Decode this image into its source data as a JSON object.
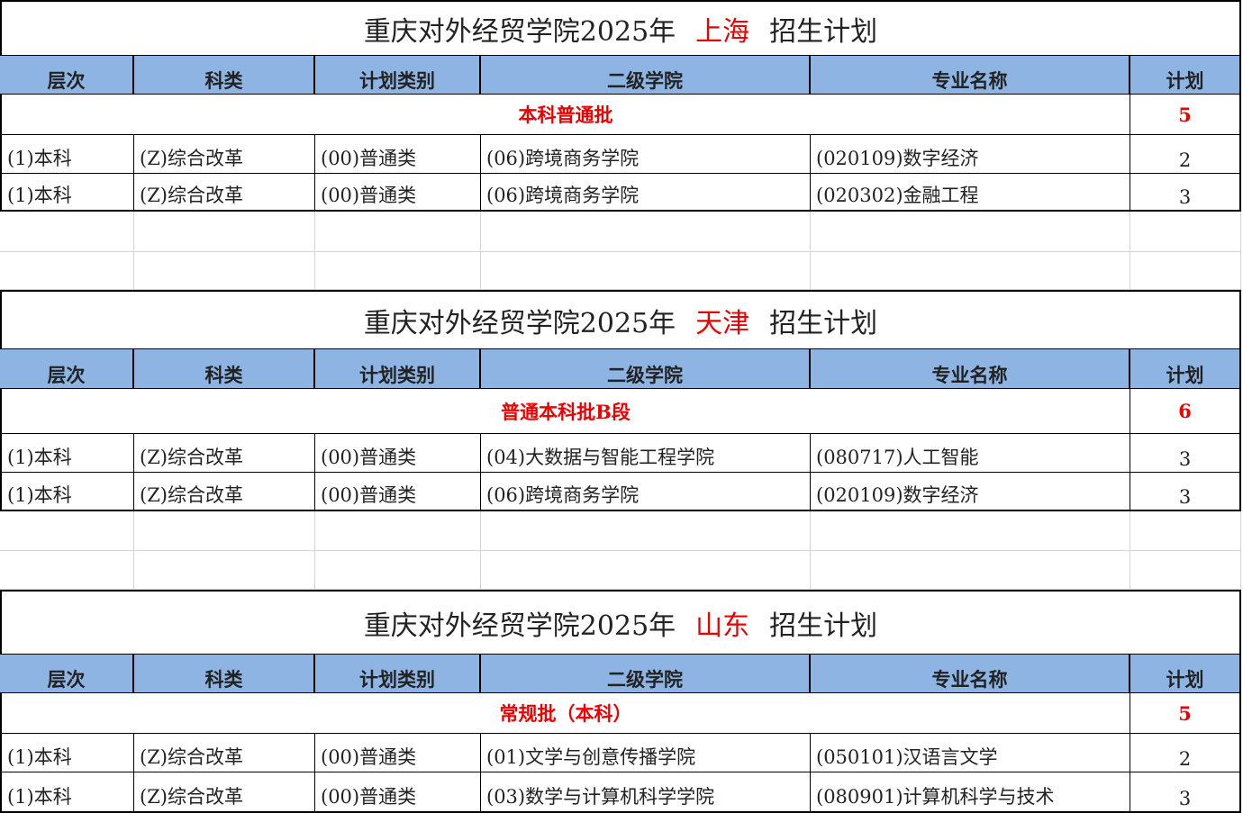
{
  "headers": [
    "层次",
    "科类",
    "计划类别",
    "二级学院",
    "专业名称",
    "计划"
  ],
  "sections": [
    {
      "title": {
        "prefix": "重庆对外经贸学院2025年",
        "region": "上海",
        "suffix": "招生计划"
      },
      "batch": {
        "name": "本科普通批",
        "total": 5
      },
      "rows": [
        [
          "(1)本科",
          "(Z)综合改革",
          "(00)普通类",
          "(06)跨境商务学院",
          "(020109)数字经济",
          2
        ],
        [
          "(1)本科",
          "(Z)综合改革",
          "(00)普通类",
          "(06)跨境商务学院",
          "(020302)金融工程",
          3
        ]
      ]
    },
    {
      "title": {
        "prefix": "重庆对外经贸学院2025年",
        "region": "天津",
        "suffix": "招生计划"
      },
      "batch": {
        "name": "普通本科批B段",
        "total": 6
      },
      "rows": [
        [
          "(1)本科",
          "(Z)综合改革",
          "(00)普通类",
          "(04)大数据与智能工程学院",
          "(080717)人工智能",
          3
        ],
        [
          "(1)本科",
          "(Z)综合改革",
          "(00)普通类",
          "(06)跨境商务学院",
          "(020109)数字经济",
          3
        ]
      ]
    },
    {
      "title": {
        "prefix": "重庆对外经贸学院2025年",
        "region": "山东",
        "suffix": "招生计划"
      },
      "batch": {
        "name": "常规批（本科）",
        "total": 5
      },
      "rows": [
        [
          "(1)本科",
          "(Z)综合改革",
          "(00)普通类",
          "(01)文学与创意传播学院",
          "(050101)汉语言文学",
          2
        ],
        [
          "(1)本科",
          "(Z)综合改革",
          "(00)普通类",
          "(03)数学与计算机科学学院",
          "(080901)计算机科学与技术",
          3
        ]
      ]
    }
  ]
}
